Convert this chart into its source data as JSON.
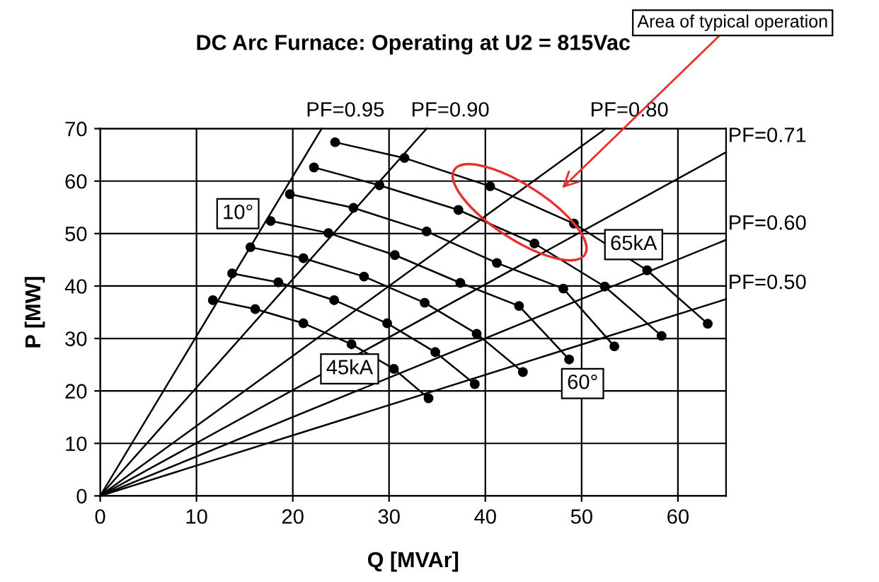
{
  "chart_data": {
    "type": "line",
    "title": "DC Arc Furnace: Operating at U2 = 815Vac",
    "xlabel": "Q [MVAr]",
    "ylabel": "P [MW]",
    "xlim": [
      0,
      65
    ],
    "ylim": [
      0,
      70
    ],
    "xticks": [
      0,
      10,
      20,
      30,
      40,
      50,
      60
    ],
    "yticks": [
      0,
      10,
      20,
      30,
      40,
      50,
      60,
      70
    ],
    "grid": true,
    "series": [
      {
        "name": "PF=0.95",
        "color": "#000000",
        "marker": "none",
        "x": [
          0,
          23
        ],
        "values": [
          0,
          70
        ]
      },
      {
        "name": "PF=0.90",
        "color": "#000000",
        "marker": "none",
        "x": [
          0,
          33.9
        ],
        "values": [
          0,
          70
        ]
      },
      {
        "name": "PF=0.80",
        "color": "#000000",
        "marker": "none",
        "x": [
          0,
          52.5
        ],
        "values": [
          0,
          70
        ]
      },
      {
        "name": "PF=0.71",
        "color": "#000000",
        "marker": "none",
        "x": [
          0,
          65
        ],
        "values": [
          0,
          65.5
        ]
      },
      {
        "name": "PF=0.60",
        "color": "#000000",
        "marker": "none",
        "x": [
          0,
          65
        ],
        "values": [
          0,
          48.8
        ]
      },
      {
        "name": "PF=0.50",
        "color": "#000000",
        "marker": "none",
        "x": [
          0,
          65
        ],
        "values": [
          0,
          37.5
        ]
      },
      {
        "color": "#000000",
        "marker": "circle",
        "x": [
          24.4,
          31.6,
          40.5,
          49.2,
          56.8,
          63.1
        ],
        "values": [
          67.4,
          64.4,
          59.0,
          51.9,
          43.0,
          32.8
        ]
      },
      {
        "color": "#000000",
        "marker": "circle",
        "x": [
          22.2,
          29.0,
          37.2,
          45.1,
          52.4,
          58.3
        ],
        "values": [
          62.6,
          59.2,
          54.5,
          48.1,
          39.9,
          30.5
        ]
      },
      {
        "color": "#000000",
        "marker": "circle",
        "x": [
          19.7,
          26.3,
          33.9,
          41.2,
          48.1,
          53.4
        ],
        "values": [
          57.5,
          54.9,
          50.4,
          44.4,
          39.5,
          28.5
        ]
      },
      {
        "color": "#000000",
        "marker": "circle",
        "x": [
          17.7,
          23.7,
          30.6,
          37.4,
          43.5,
          48.7
        ],
        "values": [
          52.4,
          50.1,
          45.9,
          40.6,
          36.2,
          26.0
        ]
      },
      {
        "color": "#000000",
        "marker": "circle",
        "x": [
          15.6,
          21.1,
          27.4,
          33.7,
          39.1,
          43.9
        ],
        "values": [
          47.4,
          45.3,
          41.8,
          36.8,
          30.9,
          23.6
        ]
      },
      {
        "color": "#000000",
        "marker": "circle",
        "x": [
          13.7,
          18.5,
          24.3,
          29.8,
          34.8,
          38.9
        ],
        "values": [
          42.4,
          40.7,
          37.3,
          32.9,
          27.4,
          21.3
        ]
      },
      {
        "color": "#000000",
        "marker": "circle",
        "x": [
          11.7,
          16.1,
          21.1,
          26.1,
          30.5,
          34.1
        ],
        "values": [
          37.3,
          35.6,
          32.9,
          28.9,
          24.2,
          18.6
        ]
      }
    ],
    "annotations": [
      {
        "text": "10°",
        "x": 14.3,
        "y": 53.8
      },
      {
        "text": "45kA",
        "x": 25.9,
        "y": 24.2
      },
      {
        "text": "65kA",
        "x": 55.4,
        "y": 47.9
      },
      {
        "text": "60°",
        "x": 50.1,
        "y": 21.4
      },
      "Area of typical operation"
    ]
  }
}
